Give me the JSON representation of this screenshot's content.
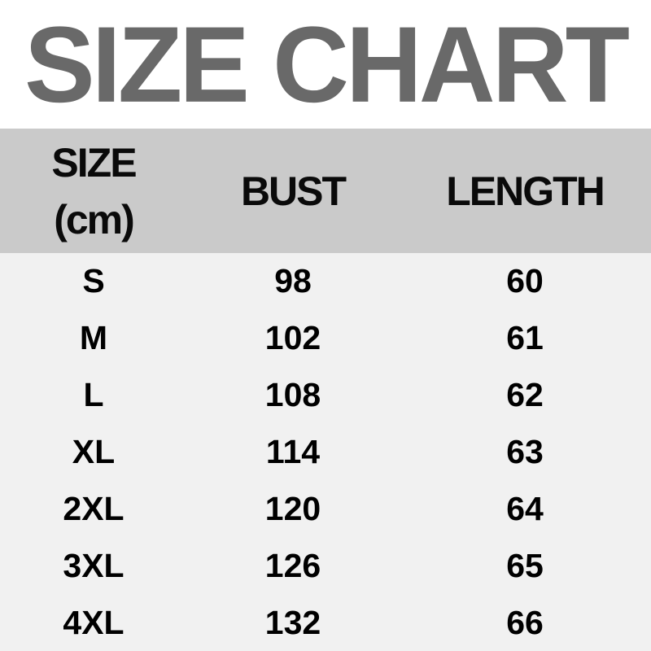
{
  "title": "SIZE CHART",
  "colors": {
    "title_text": "#696969",
    "header_bg": "#cacaca",
    "body_bg": "#f1f1f1",
    "header_text": "#0a0a0a",
    "body_text": "#000000",
    "page_bg": "#ffffff"
  },
  "table": {
    "header": {
      "size_line1": "SIZE",
      "size_line2": "(cm)",
      "bust": "BUST",
      "length": "LENGTH"
    },
    "rows": [
      {
        "size": "S",
        "bust": "98",
        "length": "60"
      },
      {
        "size": "M",
        "bust": "102",
        "length": "61"
      },
      {
        "size": "L",
        "bust": "108",
        "length": "62"
      },
      {
        "size": "XL",
        "bust": "114",
        "length": "63"
      },
      {
        "size": "2XL",
        "bust": "120",
        "length": "64"
      },
      {
        "size": "3XL",
        "bust": "126",
        "length": "65"
      },
      {
        "size": "4XL",
        "bust": "132",
        "length": "66"
      }
    ]
  },
  "chart_data": {
    "type": "table",
    "title": "SIZE CHART",
    "columns": [
      "SIZE (cm)",
      "BUST",
      "LENGTH"
    ],
    "rows": [
      [
        "S",
        98,
        60
      ],
      [
        "M",
        102,
        61
      ],
      [
        "L",
        108,
        62
      ],
      [
        "XL",
        114,
        63
      ],
      [
        "2XL",
        120,
        64
      ],
      [
        "3XL",
        126,
        65
      ],
      [
        "4XL",
        132,
        66
      ]
    ]
  }
}
